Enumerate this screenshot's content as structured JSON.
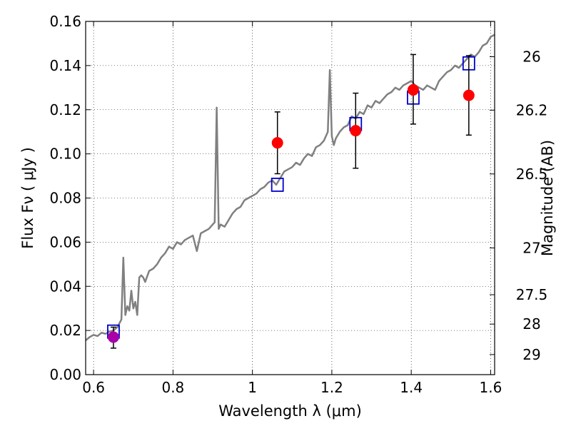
{
  "chart_data": {
    "type": "line",
    "xlabel": "Wavelength  λ (μm)",
    "ylabel": "Flux  Fν  ( μJy )",
    "y2label": "Magnitude (AB)",
    "xlim": [
      0.58,
      1.61
    ],
    "ylim": [
      0.0,
      0.16
    ],
    "grid": true,
    "x_ticks": [
      {
        "value": 0.6,
        "label": "0.6"
      },
      {
        "value": 0.8,
        "label": "0.8"
      },
      {
        "value": 1.0,
        "label": "1"
      },
      {
        "value": 1.2,
        "label": "1.2"
      },
      {
        "value": 1.4,
        "label": "1.4"
      },
      {
        "value": 1.6,
        "label": "1.6"
      }
    ],
    "y_ticks": [
      {
        "value": 0.0,
        "label": "0.00"
      },
      {
        "value": 0.02,
        "label": "0.02"
      },
      {
        "value": 0.04,
        "label": "0.04"
      },
      {
        "value": 0.06,
        "label": "0.06"
      },
      {
        "value": 0.08,
        "label": "0.08"
      },
      {
        "value": 0.1,
        "label": "0.10"
      },
      {
        "value": 0.12,
        "label": "0.12"
      },
      {
        "value": 0.14,
        "label": "0.14"
      },
      {
        "value": 0.16,
        "label": "0.16"
      }
    ],
    "mag_ticks": [
      {
        "flux": 0.144,
        "label": "26"
      },
      {
        "flux": 0.1198,
        "label": "26.2"
      },
      {
        "flux": 0.0909,
        "label": "26.5"
      },
      {
        "flux": 0.0574,
        "label": "27"
      },
      {
        "flux": 0.0362,
        "label": "27.5"
      },
      {
        "flux": 0.0229,
        "label": "28"
      },
      {
        "flux": 0.0091,
        "label": "29"
      }
    ],
    "series": [
      {
        "kind": "line",
        "color": "#808080",
        "x": [
          0.58,
          0.59,
          0.6,
          0.61,
          0.62,
          0.63,
          0.64,
          0.65,
          0.66,
          0.67,
          0.675,
          0.68,
          0.685,
          0.69,
          0.695,
          0.7,
          0.705,
          0.71,
          0.715,
          0.72,
          0.725,
          0.73,
          0.74,
          0.75,
          0.76,
          0.77,
          0.78,
          0.79,
          0.8,
          0.81,
          0.82,
          0.83,
          0.84,
          0.85,
          0.86,
          0.87,
          0.88,
          0.89,
          0.9,
          0.905,
          0.91,
          0.915,
          0.92,
          0.93,
          0.94,
          0.95,
          0.96,
          0.97,
          0.98,
          0.99,
          1.0,
          1.01,
          1.02,
          1.03,
          1.04,
          1.05,
          1.06,
          1.07,
          1.08,
          1.09,
          1.1,
          1.11,
          1.12,
          1.13,
          1.14,
          1.15,
          1.16,
          1.17,
          1.18,
          1.19,
          1.195,
          1.2,
          1.205,
          1.21,
          1.22,
          1.23,
          1.24,
          1.25,
          1.26,
          1.27,
          1.28,
          1.29,
          1.3,
          1.31,
          1.32,
          1.33,
          1.34,
          1.35,
          1.36,
          1.37,
          1.38,
          1.39,
          1.4,
          1.41,
          1.42,
          1.43,
          1.44,
          1.45,
          1.46,
          1.47,
          1.48,
          1.49,
          1.5,
          1.51,
          1.52,
          1.53,
          1.54,
          1.55,
          1.56,
          1.57,
          1.58,
          1.59,
          1.6,
          1.61
        ],
        "values": [
          0.0155,
          0.017,
          0.018,
          0.0175,
          0.019,
          0.0185,
          0.0195,
          0.02,
          0.0215,
          0.025,
          0.053,
          0.027,
          0.031,
          0.029,
          0.038,
          0.03,
          0.033,
          0.027,
          0.044,
          0.045,
          0.044,
          0.042,
          0.047,
          0.048,
          0.05,
          0.053,
          0.055,
          0.058,
          0.057,
          0.06,
          0.059,
          0.061,
          0.062,
          0.063,
          0.056,
          0.064,
          0.065,
          0.066,
          0.068,
          0.069,
          0.121,
          0.066,
          0.068,
          0.067,
          0.07,
          0.073,
          0.075,
          0.076,
          0.079,
          0.08,
          0.081,
          0.082,
          0.084,
          0.085,
          0.087,
          0.088,
          0.086,
          0.089,
          0.092,
          0.093,
          0.094,
          0.096,
          0.095,
          0.098,
          0.1,
          0.099,
          0.103,
          0.104,
          0.106,
          0.11,
          0.138,
          0.108,
          0.104,
          0.107,
          0.11,
          0.112,
          0.113,
          0.117,
          0.116,
          0.119,
          0.118,
          0.122,
          0.121,
          0.124,
          0.123,
          0.125,
          0.127,
          0.128,
          0.13,
          0.129,
          0.131,
          0.132,
          0.133,
          0.131,
          0.13,
          0.129,
          0.131,
          0.13,
          0.129,
          0.133,
          0.135,
          0.137,
          0.138,
          0.14,
          0.139,
          0.141,
          0.143,
          0.145,
          0.144,
          0.146,
          0.149,
          0.15,
          0.153,
          0.154
        ]
      },
      {
        "kind": "open-square",
        "color": "#0000cc",
        "x": [
          0.65,
          1.063,
          1.26,
          1.405,
          1.545
        ],
        "values": [
          0.0195,
          0.086,
          0.1135,
          0.1255,
          0.141
        ]
      },
      {
        "kind": "filled-circle-errorbar",
        "color": "#ff0000",
        "x": [
          1.063,
          1.26,
          1.405,
          1.545
        ],
        "values": [
          0.105,
          0.1105,
          0.129,
          0.1265
        ],
        "err_low": [
          0.091,
          0.0935,
          0.1135,
          0.1085
        ],
        "err_high": [
          0.119,
          0.1275,
          0.145,
          0.1445
        ]
      },
      {
        "kind": "filled-circle-errorbar",
        "color": "#aa00aa",
        "x": [
          0.65
        ],
        "values": [
          0.017
        ],
        "err_low": [
          0.012
        ],
        "err_high": [
          0.0215
        ]
      }
    ]
  }
}
